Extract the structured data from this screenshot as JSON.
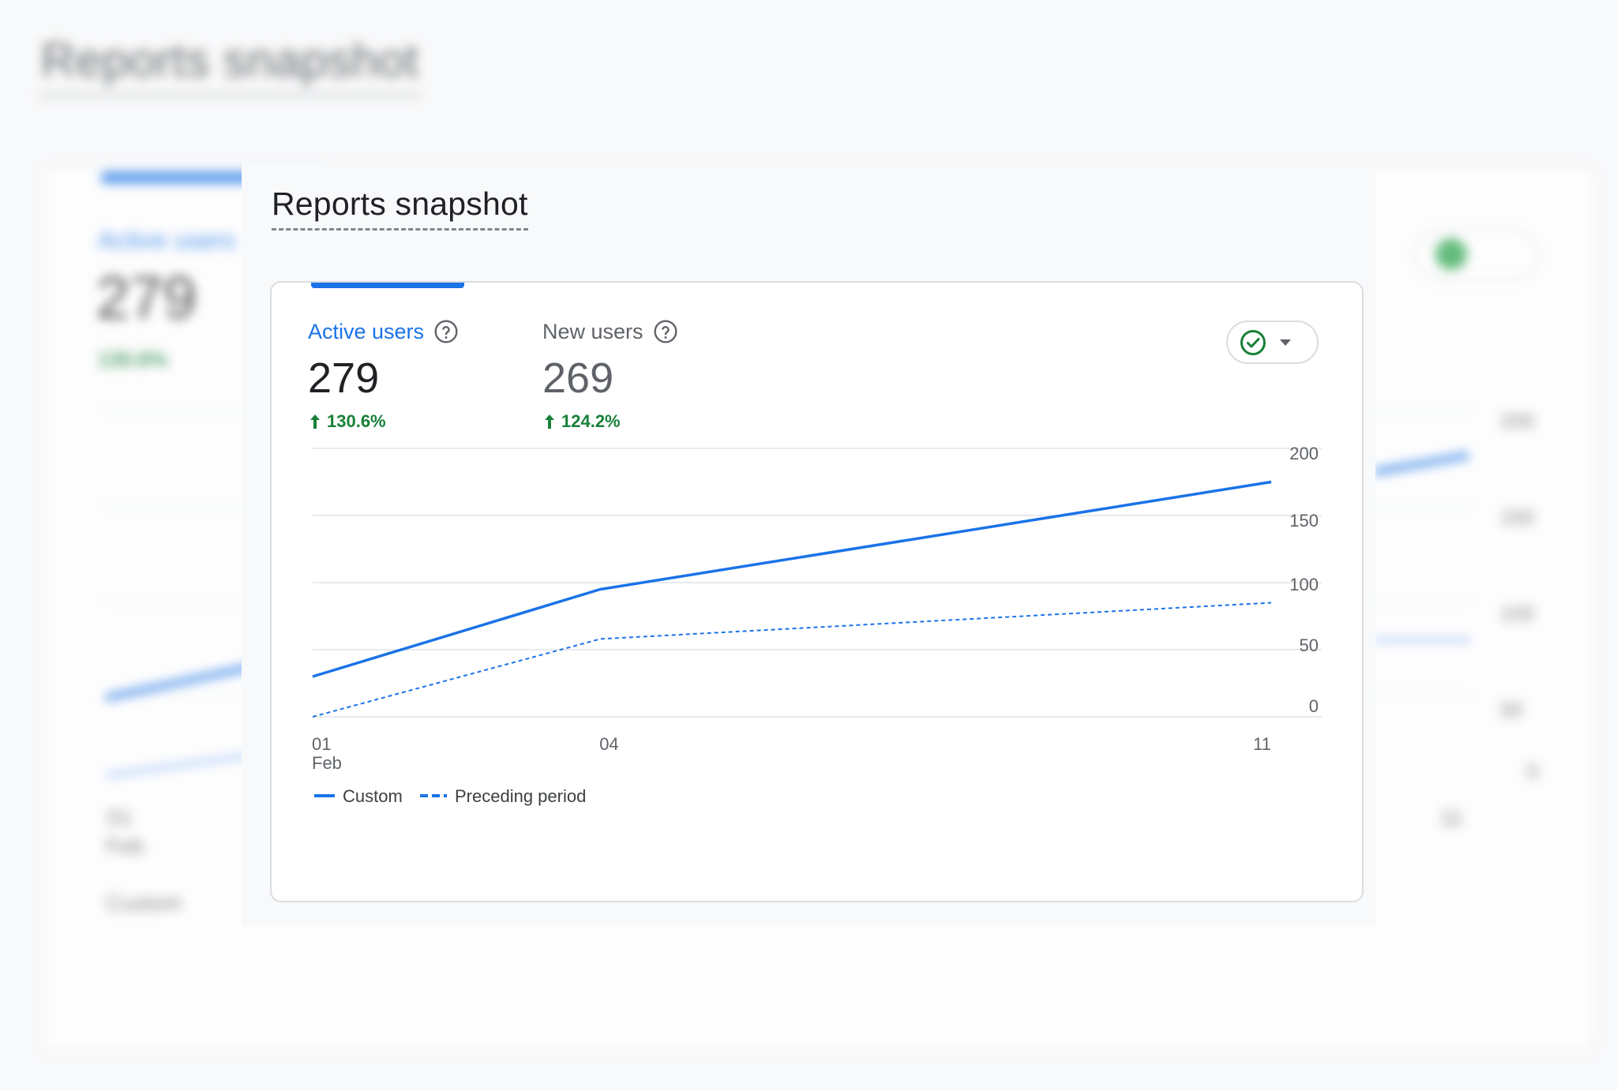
{
  "page": {
    "title": "Reports snapshot"
  },
  "metrics": [
    {
      "label": "Active users",
      "value": "279",
      "delta": "130.6%",
      "active": true
    },
    {
      "label": "New users",
      "value": "269",
      "delta": "124.2%",
      "active": false
    }
  ],
  "compare_button": {
    "icon": "check-circle-icon",
    "caret": "caret-down-icon",
    "color": "#188038"
  },
  "colors": {
    "accent": "#1a73e8",
    "positive": "#188038",
    "preceding": "#1a73e8"
  },
  "chart_data": {
    "type": "line",
    "x": [
      "01",
      "04",
      "11"
    ],
    "x_sublabels": [
      "Feb",
      "",
      ""
    ],
    "x_days": [
      1,
      4,
      11
    ],
    "series": [
      {
        "name": "Custom",
        "style": "solid",
        "values": [
          30,
          95,
          175
        ]
      },
      {
        "name": "Preceding period",
        "style": "dashed",
        "values": [
          0,
          58,
          85
        ]
      }
    ],
    "yticks": [
      0,
      50,
      100,
      150,
      200
    ],
    "ylim": [
      0,
      200
    ],
    "xlabel": "",
    "ylabel": "",
    "title": "",
    "legend_position": "bottom-left",
    "grid": true,
    "y_axis_side": "right"
  }
}
